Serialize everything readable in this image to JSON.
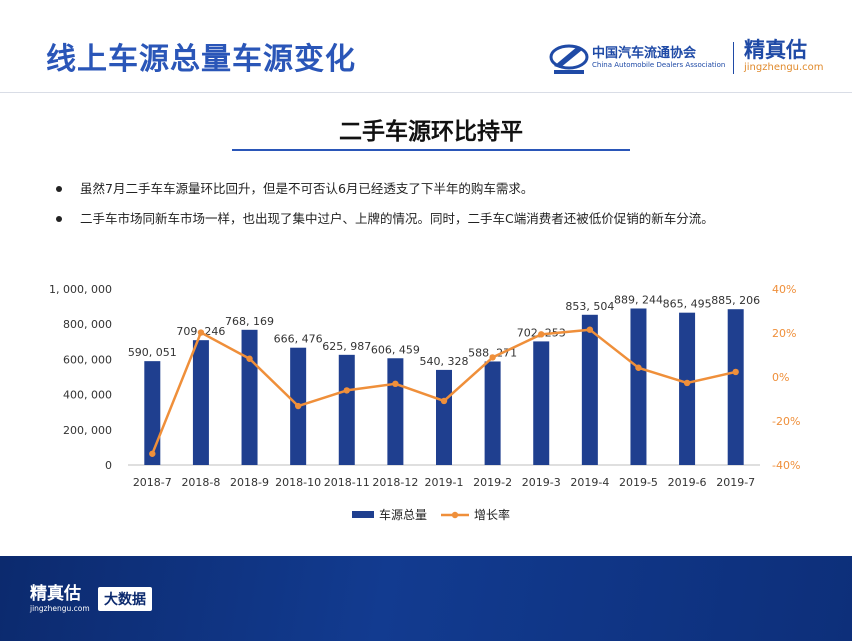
{
  "header": {
    "title": "线上车源总量车源变化",
    "logo_caada_cn": "中国汽车流通协会",
    "logo_caada_en": "China Automobile Dealers Association",
    "logo_jzg_name": "精真估",
    "logo_jzg_url": "jingzhengu.com"
  },
  "subtitle": "二手车源环比持平",
  "bullets": [
    "虽然7月二手车车源量环比回升，但是不可否认6月已经透支了下半年的购车需求。",
    "二手车市场同新车市场一样，也出现了集中过户、上牌的情况。同时，二手车C端消费者还被低价促销的新车分流。"
  ],
  "footer": {
    "logo_name": "精真估",
    "logo_url": "jingzhengu.com",
    "badge": "大数据"
  },
  "colors": {
    "bar": "#1f3f8f",
    "line": "#ef8f3a",
    "accent": "#2a56b8"
  },
  "chart_data": {
    "type": "bar",
    "categories": [
      "2018-7",
      "2018-8",
      "2018-9",
      "2018-10",
      "2018-11",
      "2018-12",
      "2019-1",
      "2019-2",
      "2019-3",
      "2019-4",
      "2019-5",
      "2019-6",
      "2019-7"
    ],
    "series": [
      {
        "name": "车源总量",
        "type": "bar",
        "axis": "left",
        "values": [
          590051,
          709246,
          768169,
          666476,
          625987,
          606459,
          540328,
          588271,
          702253,
          853504,
          889244,
          865495,
          885206
        ],
        "labels": [
          "590, 051",
          "709, 246",
          "768, 169",
          "666, 476",
          "625, 987",
          "606, 459",
          "540, 328",
          "588, 271",
          "702, 253",
          "853, 504",
          "889, 244",
          "865, 495",
          "885, 206"
        ]
      },
      {
        "name": "增长率",
        "type": "line",
        "axis": "right",
        "values": [
          -34.9,
          20.2,
          8.3,
          -13.2,
          -6.1,
          -3.1,
          -10.9,
          8.9,
          19.4,
          21.5,
          4.2,
          -2.7,
          2.3
        ]
      }
    ],
    "ylim": [
      0,
      1000000
    ],
    "y2lim": [
      -40,
      40
    ],
    "yticks": [
      "0",
      "200, 000",
      "400, 000",
      "600, 000",
      "800, 000",
      "1, 000, 000"
    ],
    "y2ticks": [
      "-40%",
      "-20%",
      "0%",
      "20%",
      "40%"
    ],
    "legend": "bottom"
  }
}
